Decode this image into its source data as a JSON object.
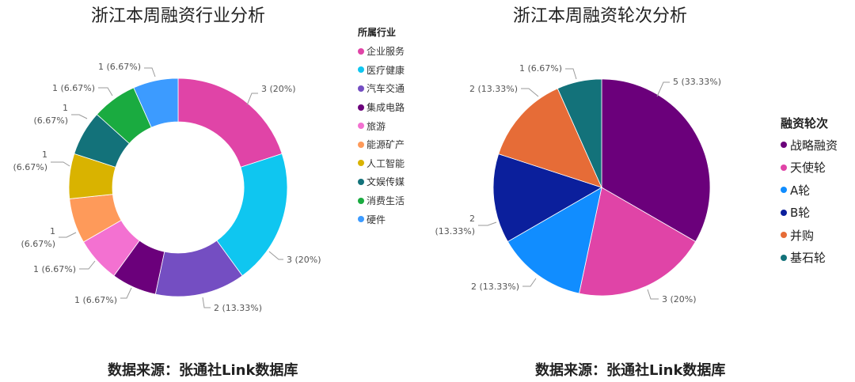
{
  "chart_data": [
    {
      "type": "pie",
      "variant": "donut",
      "title": "浙江本周融资行业分析",
      "legend_title": "所属行业",
      "legend_position": "right",
      "categories": [
        "企业服务",
        "医疗健康",
        "汽车交通",
        "集成电路",
        "旅游",
        "能源矿产",
        "人工智能",
        "文娱传媒",
        "消费生活",
        "硬件"
      ],
      "values": [
        3,
        3,
        2,
        1,
        1,
        1,
        1,
        1,
        1,
        1
      ],
      "percentages": [
        "20%",
        "20%",
        "13.33%",
        "6.67%",
        "6.67%",
        "6.67%",
        "6.67%",
        "6.67%",
        "6.67%",
        "6.67%"
      ],
      "data_labels": [
        "3 (20%)",
        "3 (20%)",
        "2 (13.33%)",
        "1 (6.67%)",
        "1 (6.67%)",
        "1 (6.67%)",
        "1 (6.67%)",
        "1 (6.67%)",
        "1 (6.67%)",
        "1 (6.67%)"
      ],
      "colors": [
        "#e044a7",
        "#0fc6f0",
        "#744ec2",
        "#6b007b",
        "#f371d1",
        "#fe9a5a",
        "#d9b300",
        "#13727a",
        "#1aab40",
        "#3c9bff"
      ],
      "source": "数据来源：张通社Link数据库"
    },
    {
      "type": "pie",
      "title": "浙江本周融资轮次分析",
      "legend_title": "融资轮次",
      "legend_position": "right",
      "categories": [
        "战略融资",
        "天使轮",
        "A轮",
        "B轮",
        "并购",
        "基石轮"
      ],
      "values": [
        5,
        3,
        2,
        2,
        2,
        1
      ],
      "percentages": [
        "33.33%",
        "20%",
        "13.33%",
        "13.33%",
        "13.33%",
        "6.67%"
      ],
      "data_labels": [
        "5 (33.33%)",
        "3 (20%)",
        "2 (13.33%)",
        "2 (13.33%)",
        "2 (13.33%)",
        "1 (6.67%)"
      ],
      "colors": [
        "#6b007b",
        "#e044a7",
        "#118dff",
        "#0b1f9c",
        "#e66c37",
        "#13727a"
      ],
      "source": "数据来源：张通社Link数据库"
    }
  ],
  "left": {
    "title": "浙江本周融资行业分析",
    "legend_title": "所属行业",
    "legend": [
      {
        "label": "企业服务",
        "color": "#e044a7"
      },
      {
        "label": "医疗健康",
        "color": "#0fc6f0"
      },
      {
        "label": "汽车交通",
        "color": "#744ec2"
      },
      {
        "label": "集成电路",
        "color": "#6b007b"
      },
      {
        "label": "旅游",
        "color": "#f371d1"
      },
      {
        "label": "能源矿产",
        "color": "#fe9a5a"
      },
      {
        "label": "人工智能",
        "color": "#d9b300"
      },
      {
        "label": "文娱传媒",
        "color": "#13727a"
      },
      {
        "label": "消费生活",
        "color": "#1aab40"
      },
      {
        "label": "硬件",
        "color": "#3c9bff"
      }
    ],
    "source": "数据来源：张通社Link数据库"
  },
  "right": {
    "title": "浙江本周融资轮次分析",
    "legend_title": "融资轮次",
    "legend": [
      {
        "label": "战略融资",
        "color": "#6b007b"
      },
      {
        "label": "天使轮",
        "color": "#e044a7"
      },
      {
        "label": "A轮",
        "color": "#118dff"
      },
      {
        "label": "B轮",
        "color": "#0b1f9c"
      },
      {
        "label": "并购",
        "color": "#e66c37"
      },
      {
        "label": "基石轮",
        "color": "#13727a"
      }
    ],
    "source": "数据来源：张通社Link数据库"
  }
}
